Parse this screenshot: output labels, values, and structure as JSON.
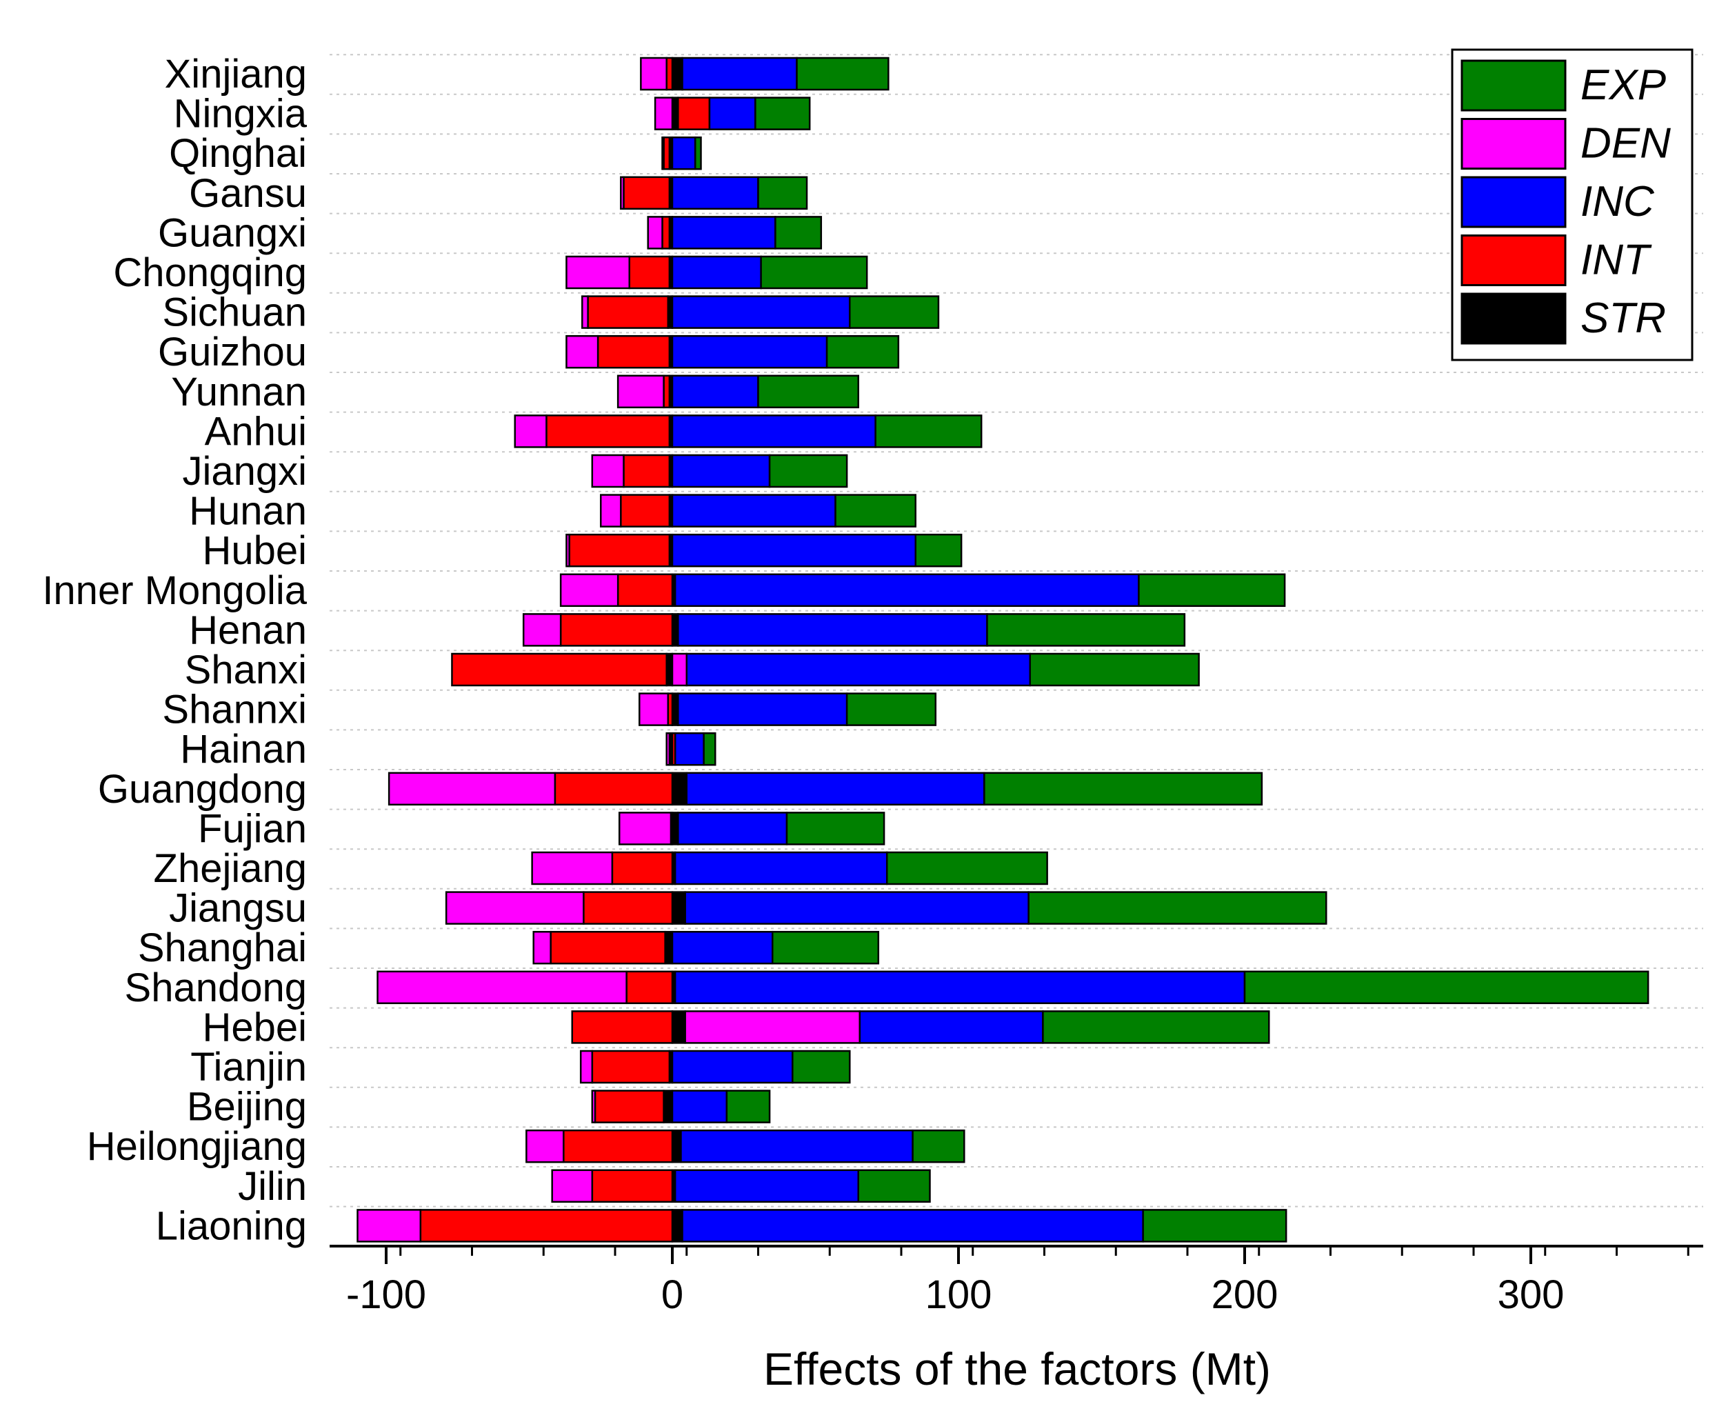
{
  "chart_data": {
    "type": "bar",
    "orientation": "horizontal",
    "stacked": "diverging",
    "xlabel": "Effects of the factors (Mt)",
    "ylabel": "",
    "xlim": [
      -120,
      360
    ],
    "xticks": [
      -100,
      0,
      100,
      200,
      300
    ],
    "xtick_labels": [
      "-100",
      "0",
      "100",
      "200",
      "300"
    ],
    "grid": "dotted horizontal",
    "legend_position": "top-right",
    "categories": [
      "Xinjiang",
      "Ningxia",
      "Qinghai",
      "Gansu",
      "Guangxi",
      "Chongqing",
      "Sichuan",
      "Guizhou",
      "Yunnan",
      "Anhui",
      "Jiangxi",
      "Hunan",
      "Hubei",
      "Inner Mongolia",
      "Henan",
      "Shanxi",
      "Shannxi",
      "Hainan",
      "Guangdong",
      "Fujian",
      "Zhejiang",
      "Jiangsu",
      "Shanghai",
      "Shandong",
      "Hebei",
      "Tianjin",
      "Beijing",
      "Heilongjiang",
      "Jilin",
      "Liaoning"
    ],
    "series": [
      {
        "name": "STR",
        "color": "#000000",
        "values": [
          3.5,
          2,
          -1,
          -1,
          -1,
          -1,
          -1.5,
          -1,
          -1,
          -1,
          -1,
          -1,
          -1,
          1,
          2,
          -2,
          2,
          -1,
          5,
          2,
          1,
          4.5,
          -2.5,
          1,
          4.5,
          -1,
          -3,
          3,
          1,
          3.5
        ]
      },
      {
        "name": "INT",
        "color": "#ff0000",
        "values": [
          -2,
          11,
          -2,
          -16,
          -2.5,
          -14,
          -28,
          -25,
          -2,
          -43,
          -16,
          -17,
          -35,
          -19,
          -39,
          -75,
          -1.5,
          1,
          -41,
          -0.5,
          -21,
          -31,
          -40,
          -16,
          -35,
          -27,
          -24,
          -38,
          -28,
          -88
        ]
      },
      {
        "name": "DEN",
        "color": "#ff00ff",
        "values": [
          -9,
          -6,
          -0.5,
          -1,
          -5,
          -22,
          -2,
          -11,
          -16,
          -11,
          -11,
          -7,
          -1,
          -20,
          -13,
          5,
          -10,
          -1,
          -58,
          -18,
          -28,
          -48,
          -6,
          -87,
          61,
          -4,
          -1,
          -13,
          -14,
          -22
        ]
      },
      {
        "name": "INC",
        "color": "#0000ff",
        "values": [
          40,
          16,
          8,
          30,
          36,
          31,
          62,
          54,
          30,
          71,
          34,
          57,
          85,
          162,
          108,
          120,
          59,
          10,
          104,
          38,
          74,
          120,
          35,
          199,
          64,
          42,
          19,
          81,
          64,
          161
        ]
      },
      {
        "name": "EXP",
        "color": "#008000",
        "values": [
          32,
          19,
          2,
          17,
          16,
          37,
          31,
          25,
          35,
          37,
          27,
          28,
          16,
          51,
          69,
          59,
          31,
          4,
          97,
          34,
          56,
          104,
          37,
          141,
          79,
          20,
          15,
          18,
          25,
          50
        ]
      }
    ],
    "legend_order": [
      "EXP",
      "DEN",
      "INC",
      "INT",
      "STR"
    ]
  }
}
